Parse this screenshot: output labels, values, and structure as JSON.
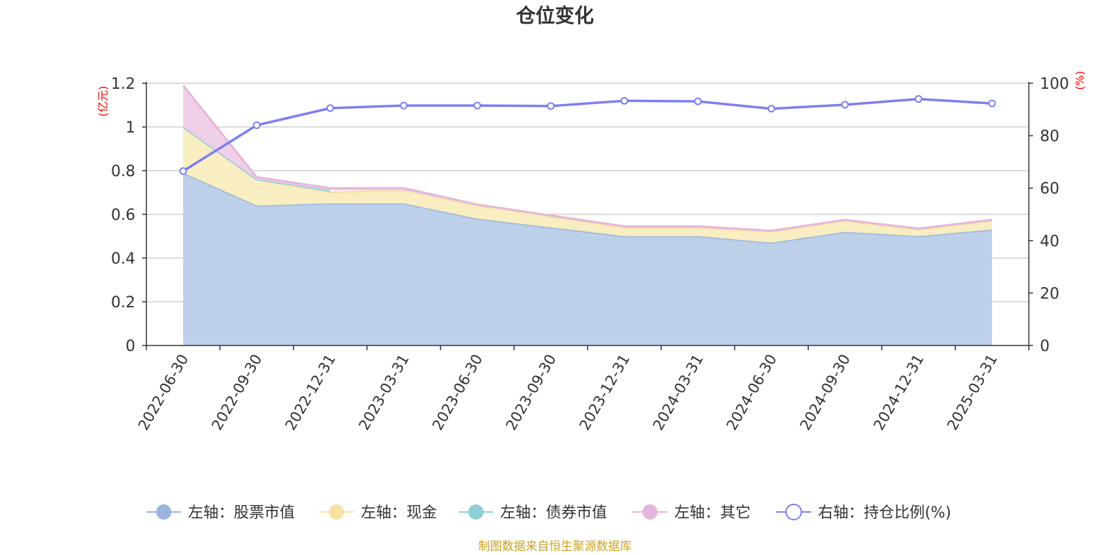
{
  "chart_data": {
    "type": "area",
    "title": "仓位变化",
    "x": [
      "2022-06-30",
      "2022-09-30",
      "2022-12-31",
      "2023-03-31",
      "2023-06-30",
      "2023-09-30",
      "2023-12-31",
      "2024-03-31",
      "2024-06-30",
      "2024-09-30",
      "2024-12-31",
      "2025-03-31"
    ],
    "left_axis": {
      "unit": "(亿元)",
      "ylim": [
        0,
        1.2
      ],
      "ticks": [
        "0",
        "0.2",
        "0.4",
        "0.6",
        "0.8",
        "1",
        "1.2"
      ]
    },
    "right_axis": {
      "unit": "(%)",
      "ylim": [
        0,
        100
      ],
      "ticks": [
        "0",
        "20",
        "40",
        "60",
        "80",
        "100"
      ]
    },
    "stacked": true,
    "series": [
      {
        "name": "左轴：股票市值",
        "axis": "left",
        "kind": "area",
        "color": "#9bb5de",
        "fill": "#b9cde9",
        "values": [
          0.79,
          0.64,
          0.65,
          0.65,
          0.58,
          0.54,
          0.5,
          0.5,
          0.47,
          0.52,
          0.5,
          0.53
        ]
      },
      {
        "name": "左轴：现金",
        "axis": "left",
        "kind": "area",
        "color": "#f7e3a1",
        "fill": "#f9edbf",
        "values": [
          0.21,
          0.12,
          0.05,
          0.06,
          0.06,
          0.05,
          0.04,
          0.04,
          0.05,
          0.05,
          0.03,
          0.04
        ]
      },
      {
        "name": "左轴：债券市值",
        "axis": "left",
        "kind": "area",
        "color": "#8fd0d3",
        "fill": "#b7e2e4",
        "values": [
          0,
          0,
          0.01,
          null,
          null,
          null,
          null,
          null,
          null,
          null,
          null,
          null
        ]
      },
      {
        "name": "左轴：其它",
        "axis": "left",
        "kind": "area",
        "color": "#e6b5dc",
        "fill": "#efcde8",
        "values": [
          0.19,
          0.01,
          0.01,
          0.01,
          0.005,
          0.005,
          0.005,
          0.005,
          0.005,
          0.005,
          0.005,
          0.005
        ]
      },
      {
        "name": "右轴：持仓比例(%)",
        "axis": "right",
        "kind": "line",
        "color": "#7b7ff0",
        "values": [
          66.5,
          84.0,
          90.5,
          91.5,
          91.5,
          91.3,
          93.3,
          93.1,
          90.3,
          91.8,
          94.0,
          92.3
        ]
      }
    ],
    "legend": {
      "position": "bottom"
    },
    "grid": true
  },
  "source": "制图数据来自恒生聚源数据库"
}
